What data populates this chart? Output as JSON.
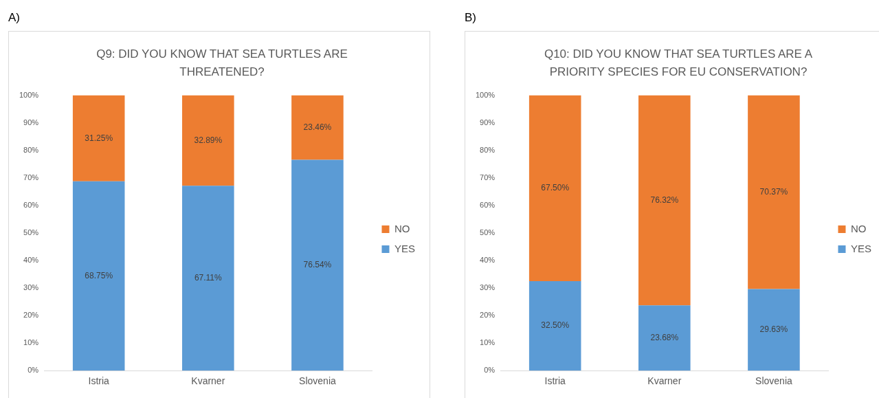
{
  "chart_data": [
    {
      "type": "bar",
      "title": "Q9: DID YOU KNOW THAT SEA TURTLES ARE THREATENED?",
      "annotations": [
        "A)"
      ],
      "categories": [
        "Istria",
        "Kvarner",
        "Slovenia"
      ],
      "stacked": true,
      "legend": "right",
      "grid": false,
      "ylim": [
        0,
        100
      ],
      "yticks": [
        {
          "value": 0,
          "label": "0%"
        },
        {
          "value": 10,
          "label": "10%"
        },
        {
          "value": 20,
          "label": "20%"
        },
        {
          "value": 30,
          "label": "30%"
        },
        {
          "value": 40,
          "label": "40%"
        },
        {
          "value": 50,
          "label": "50%"
        },
        {
          "value": 60,
          "label": "60%"
        },
        {
          "value": 70,
          "label": "70%"
        },
        {
          "value": 80,
          "label": "80%"
        },
        {
          "value": 90,
          "label": "90%"
        },
        {
          "value": 100,
          "label": "100%"
        }
      ],
      "series": [
        {
          "name": "YES",
          "color": "#5b9bd5",
          "values": [
            68.75,
            67.11,
            76.54
          ],
          "value_labels": [
            "68.75%",
            "67.11%",
            "76.54%"
          ]
        },
        {
          "name": "NO",
          "color": "#ed7d31",
          "values": [
            31.25,
            32.89,
            23.46
          ],
          "value_labels": [
            "31.25%",
            "32.89%",
            "23.46%"
          ]
        }
      ]
    },
    {
      "type": "bar",
      "title": "Q10: DID YOU KNOW THAT SEA TURTLES ARE A PRIORITY SPECIES FOR EU CONSERVATION?",
      "annotations": [
        "B)"
      ],
      "categories": [
        "Istria",
        "Kvarner",
        "Slovenia"
      ],
      "stacked": true,
      "legend": "right",
      "grid": false,
      "ylim": [
        0,
        100
      ],
      "yticks": [
        {
          "value": 0,
          "label": "0%"
        },
        {
          "value": 10,
          "label": "10%"
        },
        {
          "value": 20,
          "label": "20%"
        },
        {
          "value": 30,
          "label": "30%"
        },
        {
          "value": 40,
          "label": "40%"
        },
        {
          "value": 50,
          "label": "50%"
        },
        {
          "value": 60,
          "label": "60%"
        },
        {
          "value": 70,
          "label": "70%"
        },
        {
          "value": 80,
          "label": "80%"
        },
        {
          "value": 90,
          "label": "90%"
        },
        {
          "value": 100,
          "label": "100%"
        }
      ],
      "series": [
        {
          "name": "YES",
          "color": "#5b9bd5",
          "values": [
            32.5,
            23.68,
            29.63
          ],
          "value_labels": [
            "32.50%",
            "23.68%",
            "29.63%"
          ]
        },
        {
          "name": "NO",
          "color": "#ed7d31",
          "values": [
            67.5,
            76.32,
            70.37
          ],
          "value_labels": [
            "67.50%",
            "76.32%",
            "70.37%"
          ]
        }
      ]
    }
  ]
}
